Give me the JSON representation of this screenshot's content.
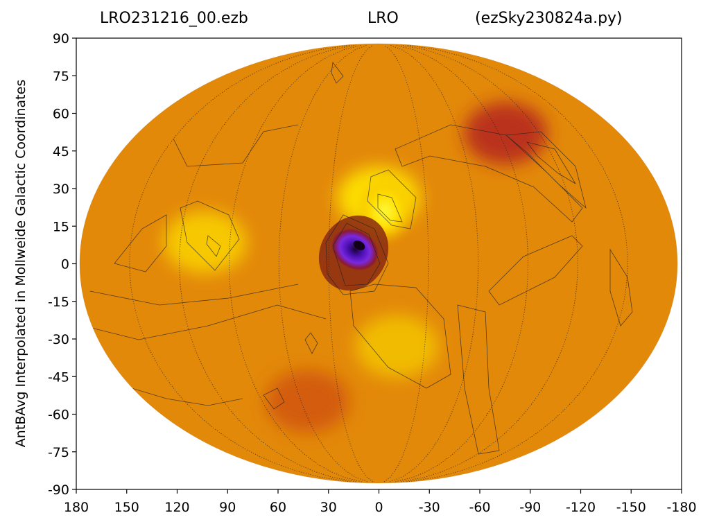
{
  "chart_data": {
    "type": "heatmap",
    "projection": "Mollweide",
    "title_left": "LRO231216_00.ezb",
    "title_center": "LRO",
    "title_right": "(ezSky230824a.py)",
    "ylabel": "AntBAvg Interpolated in Mollweide Galactic Coordinates",
    "xlabel": "",
    "x_ticks": [
      180,
      150,
      120,
      90,
      60,
      30,
      0,
      -30,
      -60,
      -90,
      -120,
      -150,
      -180
    ],
    "y_ticks": [
      90,
      75,
      60,
      45,
      30,
      15,
      0,
      -15,
      -30,
      -45,
      -60,
      -75,
      -90
    ],
    "xlim": [
      180,
      -180
    ],
    "ylim": [
      -90,
      90
    ],
    "colormap": "gnuplot",
    "background_color": "#e3890a",
    "features": [
      {
        "name": "deep minimum",
        "lon": 12,
        "lat": 7,
        "color": "#5a10c8"
      },
      {
        "name": "bright maximum",
        "lon": 0,
        "lat": 22,
        "color": "#ffe600"
      },
      {
        "name": "bright region",
        "lon": 105,
        "lat": 7,
        "color": "#f8cf00"
      },
      {
        "name": "bright region",
        "lon": -12,
        "lat": -28,
        "color": "#f2c100"
      },
      {
        "name": "dark ridge",
        "lon": -95,
        "lat": 45,
        "color": "#b62a1c"
      },
      {
        "name": "dark region",
        "lon": 55,
        "lat": -48,
        "color": "#d0560a"
      }
    ]
  }
}
